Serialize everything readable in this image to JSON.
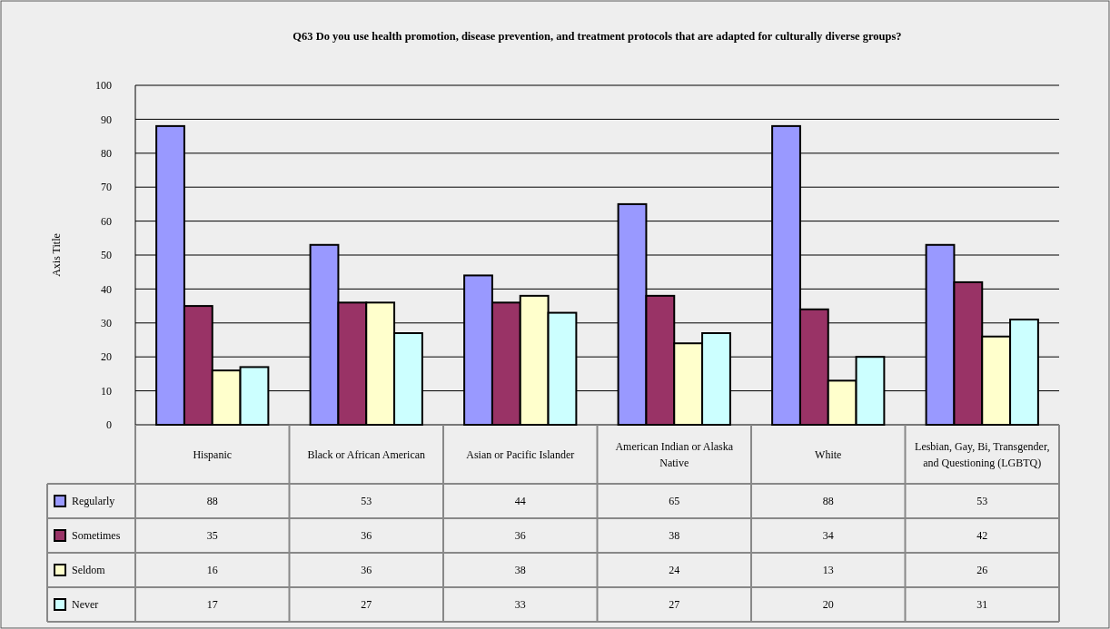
{
  "chart_data": {
    "type": "bar",
    "title": "Q63 Do you use health promotion, disease prevention, and treatment protocols that are adapted for culturally diverse groups?",
    "ylabel": "Axis Title",
    "categories": [
      "Hispanic",
      "Black or African American",
      "Asian or Pacific Islander",
      "American Indian or Alaska Native",
      "White",
      "Lesbian, Gay, Bi, Transgender, and Questioning (LGBTQ)"
    ],
    "series": [
      {
        "name": "Regularly",
        "color": "#9999ff",
        "values": [
          88,
          53,
          44,
          65,
          88,
          53
        ]
      },
      {
        "name": "Sometimes",
        "color": "#993366",
        "values": [
          35,
          36,
          36,
          38,
          34,
          42
        ]
      },
      {
        "name": "Seldom",
        "color": "#ffffcc",
        "values": [
          16,
          36,
          38,
          24,
          13,
          26
        ]
      },
      {
        "name": "Never",
        "color": "#ccffff",
        "values": [
          17,
          27,
          33,
          27,
          20,
          31
        ]
      }
    ],
    "ylim": [
      0,
      100
    ],
    "yticks": [
      0,
      10,
      20,
      30,
      40,
      50,
      60,
      70,
      80,
      90,
      100
    ],
    "grid": "y",
    "legend": "bottom",
    "data_labels": true
  }
}
